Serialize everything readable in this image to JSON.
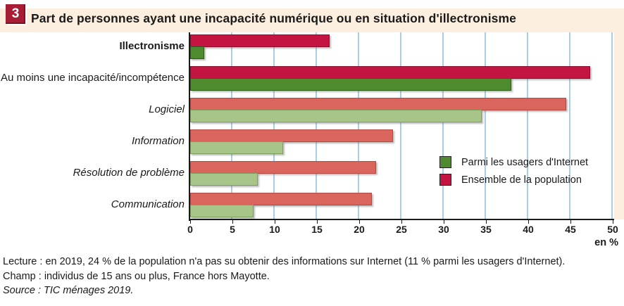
{
  "figure": {
    "badge": "3",
    "title": "Part de personnes ayant une incapacité numérique ou en situation d'illectronisme"
  },
  "chart_data": {
    "type": "bar",
    "orientation": "horizontal",
    "title": "Part de personnes ayant une incapacité numérique ou en situation d'illectronisme",
    "categories": [
      "Illectronisme",
      "Au moins une incapacité/incompétence",
      "Logiciel",
      "Information",
      "Résolution de problème",
      "Communication"
    ],
    "category_styles": [
      "bold",
      "normal",
      "italic",
      "italic",
      "italic",
      "italic"
    ],
    "emphasis_per_category": [
      "dark",
      "dark",
      "light",
      "light",
      "light",
      "light"
    ],
    "series": [
      {
        "key": "ensemble",
        "name": "Ensemble de la population",
        "values": [
          16.5,
          47.3,
          44.5,
          24,
          22,
          21.5
        ],
        "color_dark": "#c41442",
        "border_dark": "#8a0e2d",
        "color_light": "#d9655c",
        "border_light": "#b04a42"
      },
      {
        "key": "usagers",
        "name": "Parmi les usagers d'Internet",
        "values": [
          1.7,
          38,
          34.5,
          11,
          8,
          7.5
        ],
        "color_dark": "#4e8b2f",
        "border_dark": "#2e5c1b",
        "color_light": "#a7c489",
        "border_light": "#7d9f60"
      }
    ],
    "xlim": [
      0,
      50
    ],
    "xticks": [
      0,
      5,
      10,
      15,
      20,
      25,
      30,
      35,
      40,
      45,
      50
    ],
    "xlabel": "en %",
    "grid": true,
    "legend_position": "inside-right"
  },
  "legend": {
    "items": [
      {
        "label": "Parmi les usagers d'Internet",
        "color": "#4e8b2f"
      },
      {
        "label": "Ensemble de la population",
        "color": "#c41442"
      }
    ]
  },
  "notes": {
    "lecture": "Lecture : en 2019, 24 % de la population n'a pas su obtenir des informations sur Internet (11 % parmi les usagers d'Internet).",
    "champ": "Champ : individus de 15 ans ou plus, France hors Mayotte.",
    "source": "Source : TIC ménages 2019."
  },
  "colors": {
    "accent_red": "#c41442",
    "accent_green": "#4e8b2f",
    "light_red": "#d9655c",
    "light_green": "#a7c489",
    "grid_blue": "#aacde0",
    "band_peach": "#fcefdf",
    "badge_red": "#a81d35"
  }
}
